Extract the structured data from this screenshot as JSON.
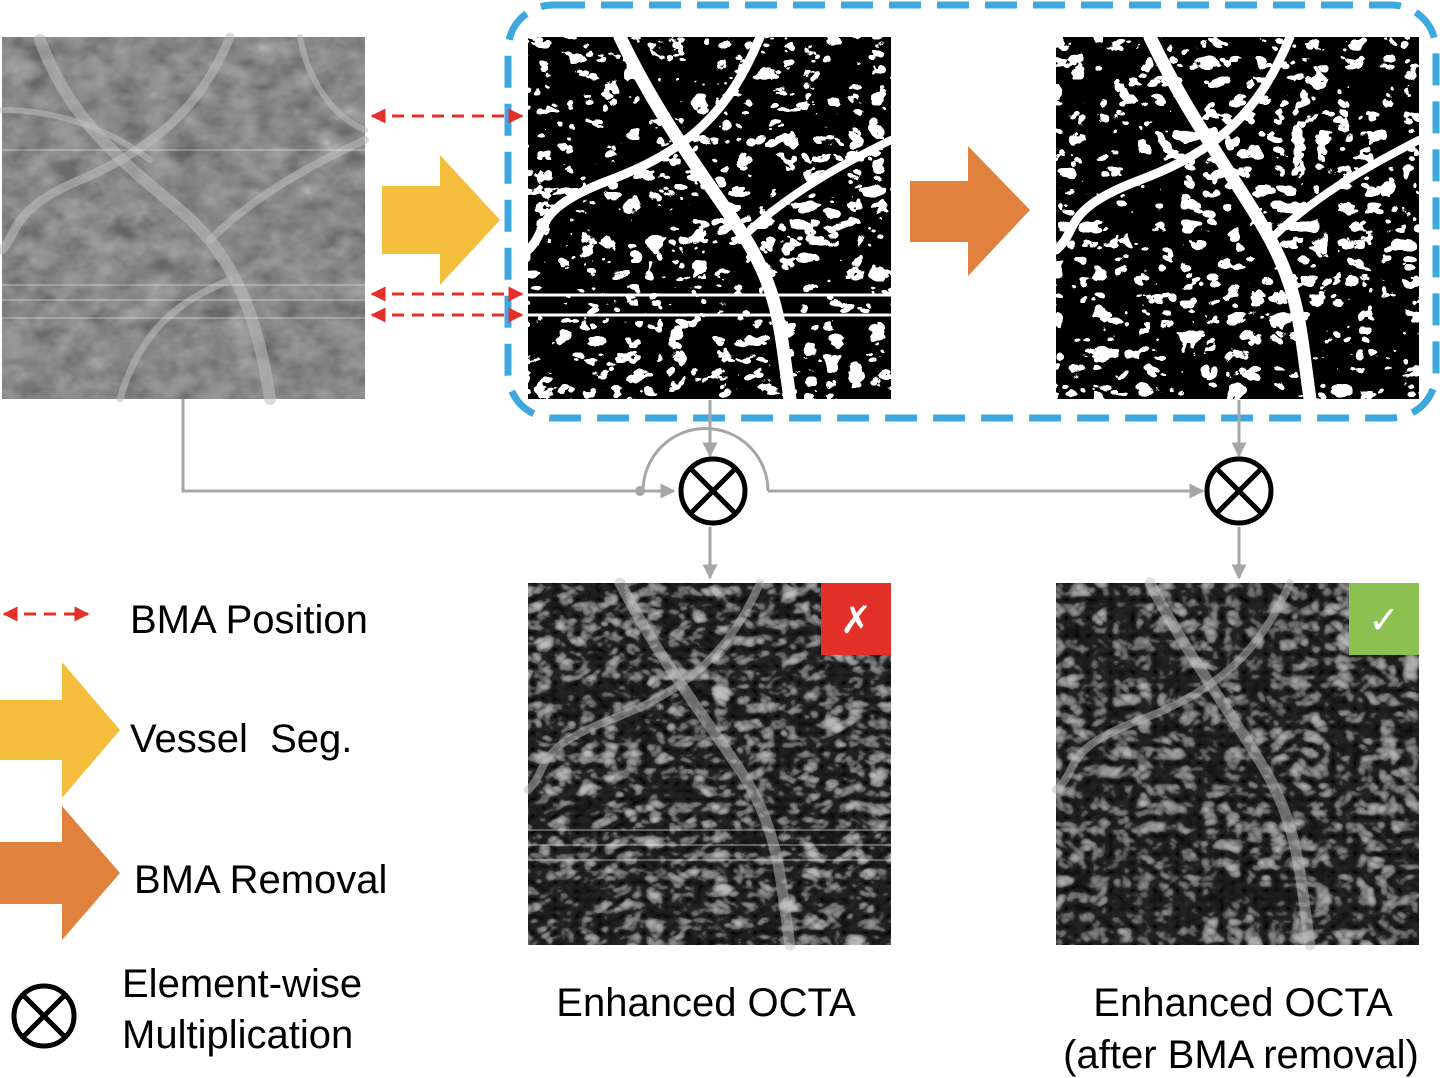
{
  "legend": {
    "bma_position": "BMA Position",
    "vessel_seg": "Vessel  Seg.",
    "bma_removal": "BMA Removal",
    "multiplication_line1": "Element-wise",
    "multiplication_line2": "Multiplication"
  },
  "captions": {
    "enhanced": "Enhanced OCTA",
    "enhanced_after_line1": "Enhanced OCTA",
    "enhanced_after_line2": "(after BMA removal)"
  },
  "badges": {
    "fail_mark": "✗",
    "pass_mark": "✓"
  },
  "colors": {
    "vessel_seg_arrow": "#f4bd3c",
    "bma_removal_arrow": "#e0813e",
    "bma_position_arrow": "#e3312a",
    "dashed_box": "#3fa7e0",
    "connector": "#a6a6a6",
    "fail_badge": "#e3312a",
    "pass_badge": "#8cc152"
  },
  "icons": [
    "element-wise-multiplication-icon",
    "cross-mark-icon",
    "check-mark-icon"
  ]
}
